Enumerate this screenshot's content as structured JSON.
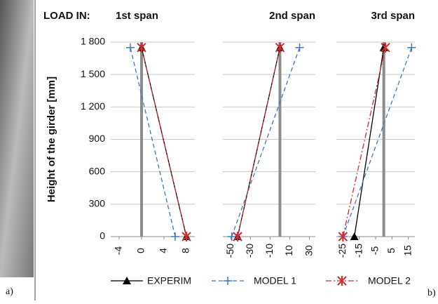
{
  "header": "LOAD IN:",
  "panel_labels": [
    "a)",
    "b)"
  ],
  "chart_data": [
    {
      "type": "line",
      "title": "1st span",
      "ylabel": "Height of the girder [mm]",
      "ylim": [
        0,
        1800
      ],
      "yticks": [
        0,
        300,
        600,
        900,
        {
          "value": 1200,
          "label": "1 200"
        },
        {
          "value": 1500,
          "label": "1 500"
        },
        {
          "value": 1800,
          "label": "1 800"
        }
      ],
      "grid": true,
      "xlim": [
        -5.5,
        9.5
      ],
      "xticks": [
        -4,
        0,
        4,
        8
      ],
      "series": [
        {
          "name": "EXPERIM",
          "color": "#000000",
          "x": [
            8,
            0
          ],
          "values": [
            0,
            1750
          ]
        },
        {
          "name": "MODEL 1",
          "color": "#3a78c2",
          "x": [
            6,
            -2
          ],
          "values": [
            0,
            1750
          ]
        },
        {
          "name": "MODEL 2",
          "color": "#d42a30",
          "x": [
            8,
            0
          ],
          "values": [
            0,
            1750
          ]
        }
      ]
    },
    {
      "type": "line",
      "title": "2nd span",
      "xlim": [
        -58,
        36
      ],
      "xticks": [
        -50,
        -30,
        -10,
        10,
        30
      ],
      "series": [
        {
          "color": "#000000",
          "x": [
            -43,
            0
          ],
          "values": [
            0,
            1750
          ]
        },
        {
          "color": "#3a78c2",
          "x": [
            -49,
            20
          ],
          "values": [
            0,
            1750
          ]
        },
        {
          "color": "#d42a30",
          "x": [
            -43,
            0
          ],
          "values": [
            0,
            1750
          ]
        }
      ]
    },
    {
      "type": "line",
      "title": "3rd span",
      "xlim": [
        -29,
        19
      ],
      "xticks": [
        -25,
        -15,
        -5,
        5,
        15
      ],
      "series": [
        {
          "color": "#000000",
          "x": [
            -18,
            0
          ],
          "values": [
            0,
            1750
          ]
        },
        {
          "color": "#3a78c2",
          "x": [
            -25,
            17
          ],
          "values": [
            0,
            1750
          ]
        },
        {
          "color": "#d42a30",
          "x": [
            -25,
            1
          ],
          "values": [
            0,
            1750
          ]
        }
      ]
    }
  ]
}
